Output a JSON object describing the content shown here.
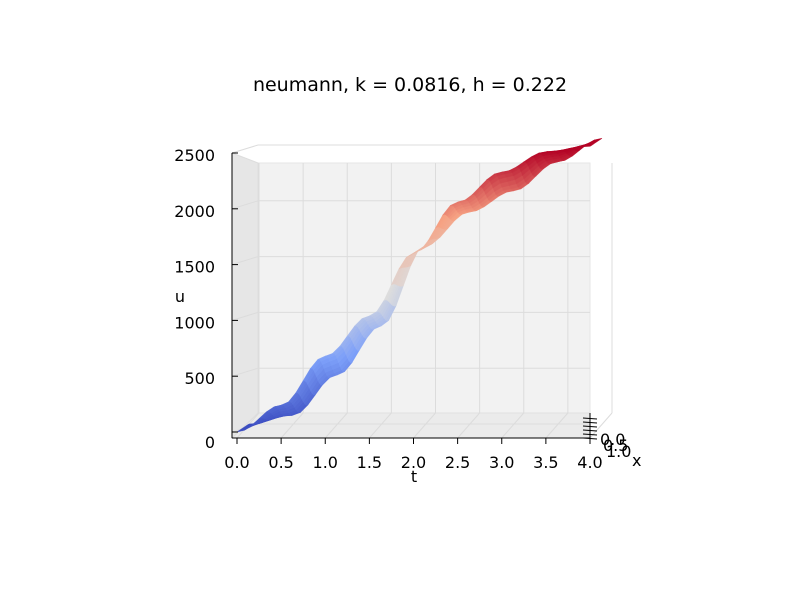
{
  "chart_data": {
    "type": "surface3d",
    "title": "neumann, k = 0.0816, h = 0.222",
    "xlabel": "t",
    "ylabel": "x",
    "zlabel": "u",
    "xlim": [
      0,
      4
    ],
    "ylim": [
      0,
      1
    ],
    "zlim": [
      0,
      2500
    ],
    "x_ticks": [
      "0.0",
      "0.5",
      "1.0",
      "1.5",
      "2.0",
      "2.5",
      "3.0",
      "3.5",
      "4.0"
    ],
    "y_ticks": [
      "0.0",
      "0.5",
      "1.0"
    ],
    "z_ticks": [
      "0",
      "500",
      "1000",
      "1500",
      "2000",
      "2500"
    ],
    "colormap": "coolwarm",
    "grid": true,
    "surface": {
      "t": [
        0.0,
        0.5,
        1.0,
        1.5,
        2.0,
        2.5,
        3.0,
        3.5,
        4.0
      ],
      "u_center": [
        0,
        160,
        560,
        960,
        1600,
        1980,
        2210,
        2430,
        2560
      ],
      "u_spread": [
        0,
        80,
        120,
        80,
        0,
        80,
        120,
        80,
        0
      ]
    }
  }
}
